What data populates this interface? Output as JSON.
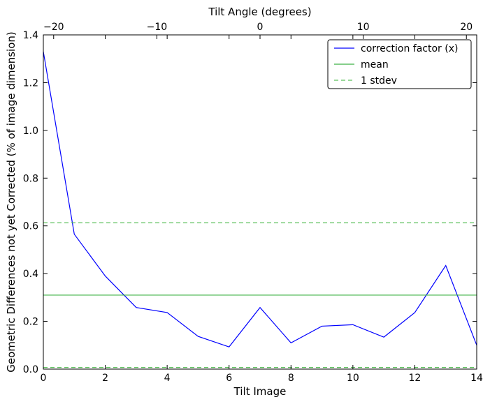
{
  "chart_data": {
    "type": "line",
    "title": "",
    "xlabel": "Tilt Image",
    "ylabel": "Geometric Differences not yet Corrected (% of image dimension)",
    "top_xlabel": "Tilt Angle (degrees)",
    "xlim": [
      0,
      14
    ],
    "ylim": [
      0,
      1.4
    ],
    "top_xlim": [
      -21,
      21
    ],
    "x_ticks": [
      0,
      2,
      4,
      6,
      8,
      10,
      12,
      14
    ],
    "x_tick_labels": [
      "0",
      "2",
      "4",
      "6",
      "8",
      "10",
      "12",
      "14"
    ],
    "y_ticks": [
      0.0,
      0.2,
      0.4,
      0.6,
      0.8,
      1.0,
      1.2,
      1.4
    ],
    "y_tick_labels": [
      "0.0",
      "0.2",
      "0.4",
      "0.6",
      "0.8",
      "1.0",
      "1.2",
      "1.4"
    ],
    "top_x_ticks": [
      -20,
      -10,
      0,
      10,
      20
    ],
    "top_x_tick_labels": [
      "−20",
      "−10",
      "0",
      "10",
      "20"
    ],
    "grid": false,
    "legend_position": "top-right",
    "series": [
      {
        "name": "correction factor (x)",
        "style": "solid",
        "color": "#0000ff",
        "x": [
          0,
          1,
          2,
          3,
          4,
          5,
          6,
          7,
          8,
          9,
          10,
          11,
          12,
          13,
          14
        ],
        "values": [
          1.33,
          0.565,
          0.39,
          0.258,
          0.237,
          0.137,
          0.093,
          0.258,
          0.11,
          0.18,
          0.186,
          0.134,
          0.237,
          0.434,
          0.1
        ]
      },
      {
        "name": "mean",
        "style": "solid",
        "color": "#3cb043",
        "x": [
          0,
          14
        ],
        "values": [
          0.31,
          0.31
        ]
      },
      {
        "name": "1 stdev",
        "style": "dashed",
        "color": "#5cc05c",
        "x": [
          0,
          14
        ],
        "values": [
          0.613,
          0.613
        ]
      },
      {
        "name": "",
        "style": "dashed",
        "color": "#5cc05c",
        "x": [
          0,
          14
        ],
        "values": [
          0.007,
          0.007
        ]
      }
    ]
  }
}
